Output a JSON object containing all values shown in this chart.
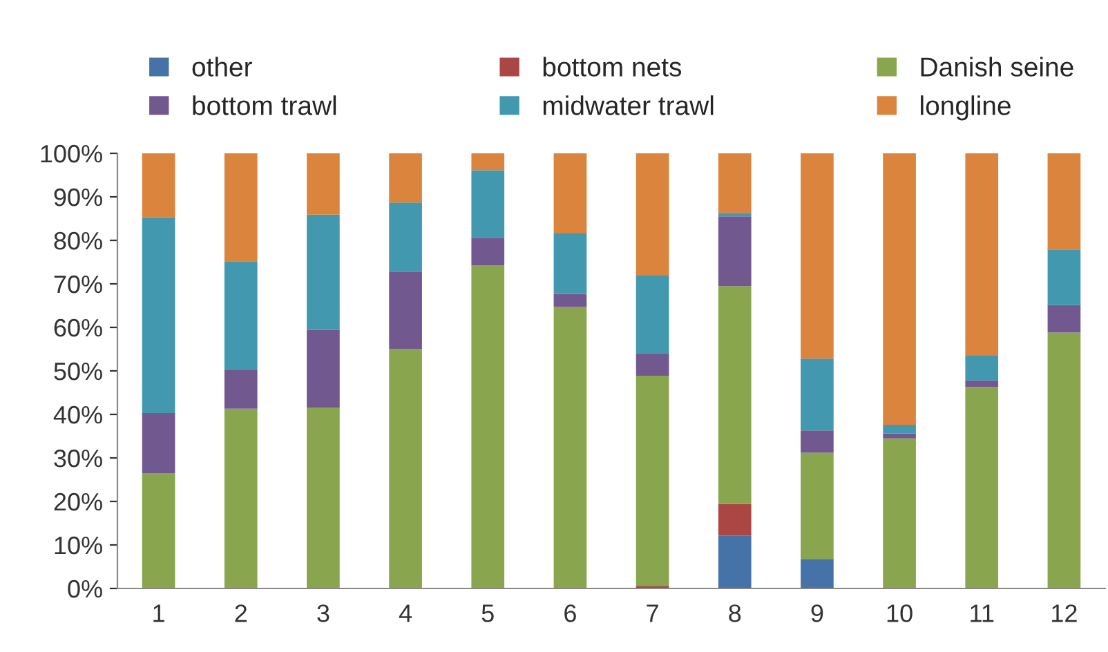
{
  "chart_data": {
    "type": "bar",
    "stacked": true,
    "categories": [
      "1",
      "2",
      "3",
      "4",
      "5",
      "6",
      "7",
      "8",
      "9",
      "10",
      "11",
      "12"
    ],
    "series": [
      {
        "name": "other",
        "color": "#4572a7",
        "values": [
          0,
          0,
          0,
          0,
          0,
          0,
          0,
          12.2,
          6.8,
          0,
          0,
          0
        ]
      },
      {
        "name": "bottom nets",
        "color": "#aa4643",
        "values": [
          0,
          0,
          0,
          0,
          0,
          0,
          0.6,
          7.2,
          0,
          0,
          0,
          0
        ]
      },
      {
        "name": "Danish seine",
        "color": "#89a54e",
        "values": [
          26.5,
          41.3,
          41.6,
          55.0,
          74.2,
          64.7,
          48.3,
          50.1,
          24.4,
          34.5,
          46.3,
          58.8
        ]
      },
      {
        "name": "bottom trawl",
        "color": "#71588f",
        "values": [
          13.8,
          9.1,
          17.8,
          17.8,
          6.4,
          3.0,
          5.2,
          16.0,
          5.1,
          1.1,
          1.5,
          6.3
        ]
      },
      {
        "name": "midwater trawl",
        "color": "#4198af",
        "values": [
          45.0,
          24.8,
          26.5,
          15.9,
          15.5,
          13.9,
          17.8,
          0.8,
          16.5,
          2.0,
          5.7,
          12.8
        ]
      },
      {
        "name": "longline",
        "color": "#db843d",
        "values": [
          14.7,
          24.8,
          14.1,
          11.3,
          3.9,
          18.4,
          28.1,
          13.7,
          47.2,
          62.4,
          46.5,
          22.1
        ]
      }
    ],
    "ylim": [
      0,
      100
    ],
    "yticks": [
      {
        "value": 0,
        "label": "0%"
      },
      {
        "value": 10,
        "label": "10%"
      },
      {
        "value": 20,
        "label": "20%"
      },
      {
        "value": 30,
        "label": "30%"
      },
      {
        "value": 40,
        "label": "40%"
      },
      {
        "value": 50,
        "label": "50%"
      },
      {
        "value": 60,
        "label": "60%"
      },
      {
        "value": 70,
        "label": "70%"
      },
      {
        "value": 80,
        "label": "80%"
      },
      {
        "value": 90,
        "label": "90%"
      },
      {
        "value": 100,
        "label": "100%"
      }
    ],
    "grid": false,
    "legend": "top"
  }
}
